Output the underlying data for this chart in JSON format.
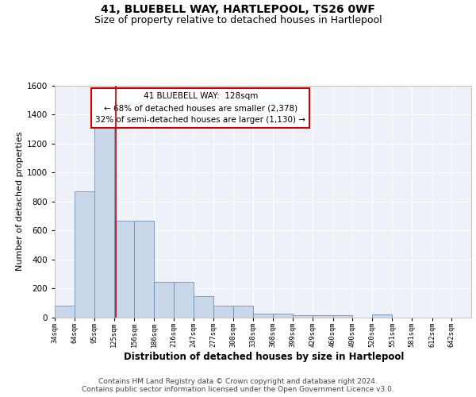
{
  "title1": "41, BLUEBELL WAY, HARTLEPOOL, TS26 0WF",
  "title2": "Size of property relative to detached houses in Hartlepool",
  "xlabel": "Distribution of detached houses by size in Hartlepool",
  "ylabel": "Number of detached properties",
  "bin_labels": [
    "34sqm",
    "64sqm",
    "95sqm",
    "125sqm",
    "156sqm",
    "186sqm",
    "216sqm",
    "247sqm",
    "277sqm",
    "308sqm",
    "338sqm",
    "368sqm",
    "399sqm",
    "429sqm",
    "460sqm",
    "490sqm",
    "520sqm",
    "551sqm",
    "581sqm",
    "612sqm",
    "642sqm"
  ],
  "bin_edges": [
    34,
    64,
    95,
    125,
    156,
    186,
    216,
    247,
    277,
    308,
    338,
    368,
    399,
    429,
    460,
    490,
    520,
    551,
    581,
    612,
    642
  ],
  "bar_heights": [
    80,
    870,
    1330,
    670,
    670,
    245,
    245,
    145,
    80,
    80,
    25,
    25,
    15,
    15,
    15,
    0,
    20,
    0,
    0,
    0,
    0
  ],
  "bar_color": "#c8d8ea",
  "bar_edge_color": "#7090b8",
  "property_size": 128,
  "red_line_color": "#cc0000",
  "annotation_line1": "41 BLUEBELL WAY:  128sqm",
  "annotation_line2": "← 68% of detached houses are smaller (2,378)",
  "annotation_line3": "32% of semi-detached houses are larger (1,130) →",
  "annotation_box_color": "#ffffff",
  "annotation_box_edge": "#cc0000",
  "ylim": [
    0,
    1600
  ],
  "yticks": [
    0,
    200,
    400,
    600,
    800,
    1000,
    1200,
    1400,
    1600
  ],
  "footer_text": "Contains HM Land Registry data © Crown copyright and database right 2024.\nContains public sector information licensed under the Open Government Licence v3.0.",
  "bg_color": "#eef2f8",
  "grid_color": "#ffffff",
  "title1_fontsize": 10,
  "title2_fontsize": 9,
  "xlabel_fontsize": 8.5,
  "ylabel_fontsize": 8,
  "footer_fontsize": 6.5
}
